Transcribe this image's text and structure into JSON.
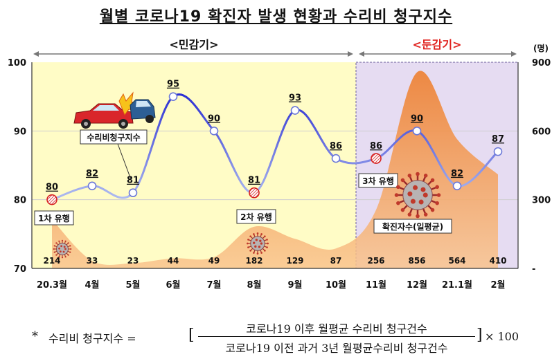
{
  "title": "월별 코로나19 확진자 발생 현황과 수리비 청구지수",
  "chart_data": {
    "type": "line",
    "categories": [
      "20.3월",
      "4월",
      "5월",
      "6월",
      "7월",
      "8월",
      "9월",
      "10월",
      "11월",
      "12월",
      "21.1월",
      "2월"
    ],
    "series": [
      {
        "name": "수리비청구지수",
        "axis": "left",
        "values": [
          80,
          82,
          81,
          95,
          90,
          81,
          93,
          86,
          86,
          90,
          82,
          87
        ],
        "color": "#3b46d6"
      },
      {
        "name": "확진자수(일평균)",
        "axis": "right",
        "type": "area",
        "values": [
          214,
          33,
          23,
          44,
          49,
          182,
          129,
          87,
          256,
          856,
          564,
          410
        ],
        "color": "#f2923f"
      }
    ],
    "ylim": [
      70,
      100
    ],
    "yticks": [
      70,
      80,
      90,
      100
    ],
    "y2lim": [
      0,
      900
    ],
    "y2ticks": [
      "-",
      "300",
      "600",
      "900"
    ],
    "y2unit": "(명)",
    "periods": [
      {
        "label": "<민감기>",
        "color": "#111111"
      },
      {
        "label": "<둔감기>",
        "color": "#e0231f"
      }
    ],
    "waves": [
      "1차 유행",
      "2차 유행",
      "3차 유행"
    ],
    "labels": {
      "index_series": "수리비청구지수",
      "cases_series": "확진자수(일평균)"
    },
    "highlight_points": [
      0,
      5,
      8
    ]
  },
  "formula": {
    "star": "*",
    "lhs": "수리비 청구지수 =",
    "numerator": "코로나19 이후 월평균 수리비 청구건수",
    "denominator": "코로나19 이전 과거 3년 월평균수리비 청구건수",
    "multiplier": "× 100",
    "bracket_left": "[",
    "bracket_right": "]"
  },
  "colors": {
    "yellow_bg": "#fffcc6",
    "purple_bg": "#e6dcf2",
    "line": "#3b46d6",
    "area": "#f2923f",
    "red": "#e0231f"
  }
}
